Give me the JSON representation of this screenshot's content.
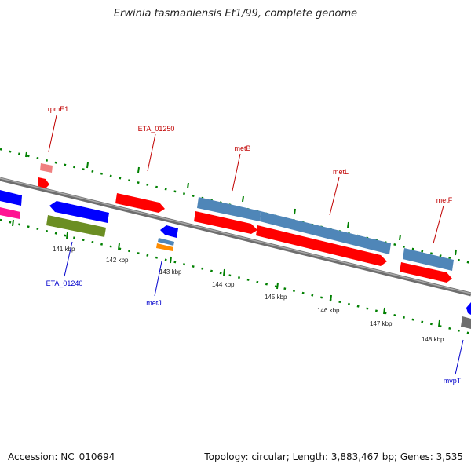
{
  "title": "Erwinia tasmaniensis Et1/99, complete genome",
  "footer": {
    "accession": "Accession: NC_010694",
    "summary": "Topology: circular; Length: 3,883,467 bp; Genes: 3,535"
  },
  "ticks": {
    "t141": "141 kbp",
    "t142": "142 kbp",
    "t143": "143 kbp",
    "t144": "144 kbp",
    "t145": "145 kbp",
    "t146": "146 kbp",
    "t147": "147 kbp",
    "t148": "148 kbp"
  },
  "genes_top": {
    "rpmE1": "rpmE1",
    "eta01250": "ETA_01250",
    "metB": "metB",
    "metL": "metL",
    "metF": "metF"
  },
  "genes_bottom": {
    "eta01240": "ETA_01240",
    "metJ": "metJ",
    "mvpT": "mvpT"
  },
  "colors": {
    "forward_label": "#c00000",
    "reverse_label": "#0000cc",
    "cds_red": "#ff0000",
    "cds_blue": "#0000ff",
    "cds_steel": "#4f86b8",
    "cds_olive": "#6b8e23",
    "cds_magenta": "#ff1493",
    "cds_orange": "#ff8c00",
    "cds_pink": "#f08080",
    "backbone": "#808080",
    "tick_green": "#008000"
  }
}
